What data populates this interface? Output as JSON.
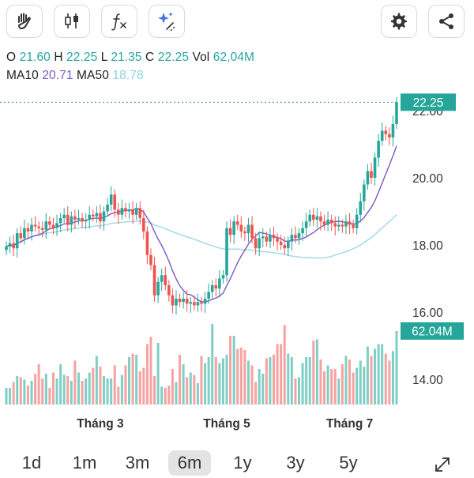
{
  "toolbar": {
    "left_icons": [
      "hand-icon",
      "candlestick-icon",
      "function-icon",
      "sparkle-icon"
    ],
    "right_icons": [
      "gear-icon",
      "share-icon"
    ]
  },
  "ohlc": {
    "o_label": "O",
    "o_value": "21.60",
    "h_label": "H",
    "h_value": "22.25",
    "l_label": "L",
    "l_value": "21.35",
    "c_label": "C",
    "c_value": "22.25",
    "vol_label": "Vol",
    "vol_value": "62,04M"
  },
  "ma": {
    "ma10_label": "MA10",
    "ma10_value": "20.71",
    "ma50_label": "MA50",
    "ma50_value": "18.78"
  },
  "chart_data": {
    "type": "candlestick",
    "y_ticks": [
      "22.00",
      "20.00",
      "18.00",
      "16.00",
      "14.00"
    ],
    "y_tick_values": [
      22,
      20,
      18,
      16,
      14
    ],
    "ylim": [
      13.8,
      22.9
    ],
    "x_labels": [
      "Tháng 3",
      "Tháng 5",
      "Tháng 7"
    ],
    "x_label_index": [
      26,
      61,
      95
    ],
    "last_price_label": "22.25",
    "last_price": 22.25,
    "volume_label": "62.04M",
    "close": [
      17.95,
      18.05,
      17.9,
      18.35,
      18.2,
      18.5,
      18.4,
      18.6,
      18.55,
      18.5,
      18.45,
      18.7,
      18.6,
      18.5,
      18.65,
      18.8,
      18.9,
      18.6,
      18.85,
      18.75,
      18.8,
      18.7,
      18.75,
      18.9,
      18.85,
      18.95,
      18.7,
      19.0,
      19.2,
      19.5,
      19.05,
      18.9,
      19.1,
      19.0,
      19.05,
      18.9,
      19.1,
      18.8,
      18.4,
      17.7,
      17.4,
      16.5,
      16.9,
      17.1,
      16.8,
      16.5,
      16.2,
      16.4,
      16.3,
      16.4,
      16.25,
      16.3,
      16.2,
      16.3,
      16.25,
      16.4,
      16.6,
      16.8,
      16.7,
      17.0,
      17.1,
      18.5,
      18.3,
      18.7,
      18.6,
      18.4,
      18.35,
      18.6,
      18.2,
      17.9,
      18.2,
      18.25,
      18.1,
      18.3,
      18.2,
      18.1,
      18.0,
      17.9,
      18.1,
      18.3,
      18.2,
      18.35,
      18.5,
      18.7,
      18.9,
      18.75,
      18.85,
      18.7,
      18.6,
      18.75,
      18.65,
      18.55,
      18.6,
      18.55,
      18.7,
      18.6,
      18.5,
      18.9,
      19.3,
      19.8,
      20.2,
      20.0,
      20.6,
      21.1,
      21.4,
      21.3,
      21.2,
      21.6,
      22.25
    ],
    "volume_millions": [
      14,
      14,
      19,
      24,
      23,
      21,
      16,
      20,
      26,
      34,
      22,
      26,
      14,
      27,
      22,
      34,
      25,
      24,
      20,
      37,
      27,
      20,
      22,
      27,
      31,
      41,
      32,
      24,
      22,
      22,
      33,
      15,
      25,
      33,
      40,
      43,
      42,
      28,
      31,
      51,
      57,
      24,
      52,
      15,
      14,
      16,
      30,
      19,
      42,
      34,
      23,
      27,
      25,
      18,
      41,
      35,
      40,
      68,
      40,
      35,
      39,
      42,
      58,
      58,
      47,
      48,
      46,
      37,
      33,
      19,
      30,
      26,
      39,
      40,
      42,
      51,
      51,
      67,
      43,
      40,
      22,
      23,
      35,
      40,
      40,
      54,
      55,
      38,
      28,
      33,
      30,
      30,
      22,
      34,
      41,
      38,
      27,
      31,
      37,
      32,
      49,
      41,
      47,
      51,
      51,
      43,
      37,
      45,
      62.04
    ]
  }
}
